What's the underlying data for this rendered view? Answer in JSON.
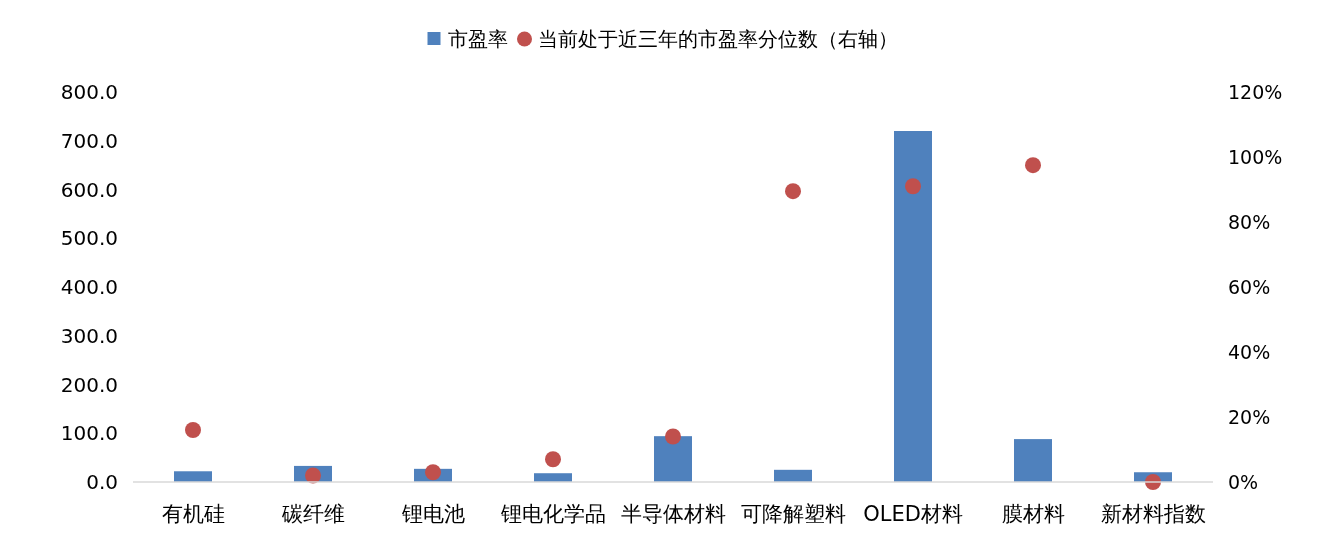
{
  "chart_data": {
    "type": "bar",
    "categories": [
      "有机硅",
      "碳纤维",
      "锂电池",
      "锂电化学品",
      "半导体材料",
      "可降解塑料",
      "OLED材料",
      "膜材料",
      "新材料指数"
    ],
    "series": [
      {
        "name": "市盈率",
        "color": "#4f81bd",
        "values": [
          22,
          33,
          27,
          18,
          94,
          25,
          720,
          88,
          20
        ]
      },
      {
        "name": "当前处于近三年的市盈率分位数（右轴）",
        "type": "scatter",
        "axis": "y2",
        "marker": "circle",
        "color": "#c0504d",
        "values": [
          16,
          2,
          3,
          7,
          14,
          89.5,
          91,
          97.5,
          0
        ]
      }
    ],
    "ylim": [
      0,
      800
    ],
    "yticks": [
      {
        "value": 0,
        "label": "0.0"
      },
      {
        "value": 100,
        "label": "100.0"
      },
      {
        "value": 200,
        "label": "200.0"
      },
      {
        "value": 300,
        "label": "300.0"
      },
      {
        "value": 400,
        "label": "400.0"
      },
      {
        "value": 500,
        "label": "500.0"
      },
      {
        "value": 600,
        "label": "600.0"
      },
      {
        "value": 700,
        "label": "700.0"
      },
      {
        "value": 800,
        "label": "800.0"
      }
    ],
    "y2lim": [
      0,
      120
    ],
    "y2ticks": [
      {
        "value": 0,
        "label": "0%"
      },
      {
        "value": 20,
        "label": "20%"
      },
      {
        "value": 40,
        "label": "40%"
      },
      {
        "value": 60,
        "label": "60%"
      },
      {
        "value": 80,
        "label": "80%"
      },
      {
        "value": 100,
        "label": "100%"
      },
      {
        "value": 120,
        "label": "120%"
      }
    ],
    "legend": "top",
    "grid": false
  }
}
